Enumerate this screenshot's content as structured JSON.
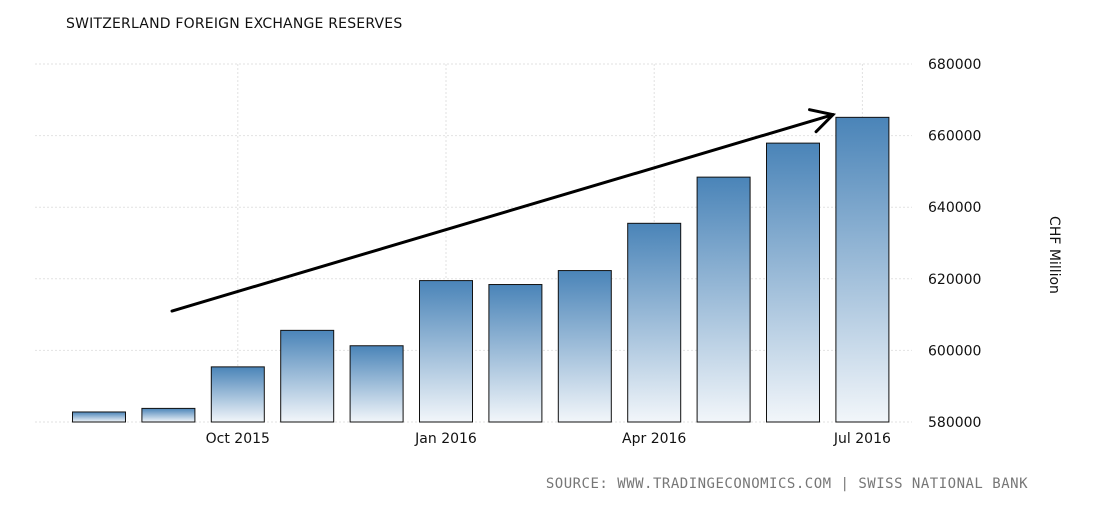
{
  "title": "SWITZERLAND FOREIGN EXCHANGE RESERVES",
  "source": "SOURCE: WWW.TRADINGECONOMICS.COM | SWISS NATIONAL BANK",
  "colors": {
    "bar_top": "#4a84b8",
    "bar_bottom": "#f2f6fa",
    "bar_stroke": "#111111",
    "grid": "#e2e2e2",
    "arrow": "#000000"
  },
  "chart_data": {
    "type": "bar",
    "categories": [
      "Aug 2015",
      "Sep 2015",
      "Oct 2015",
      "Nov 2015",
      "Dec 2015",
      "Jan 2016",
      "Feb 2016",
      "Mar 2016",
      "Apr 2016",
      "May 2016",
      "Jun 2016",
      "Jul 2016"
    ],
    "values": [
      582800,
      583800,
      595400,
      605600,
      601300,
      619500,
      618400,
      622300,
      635500,
      648400,
      657900,
      665100
    ],
    "x_tick_labels": [
      {
        "category": "Oct 2015",
        "label": "Oct 2015"
      },
      {
        "category": "Jan 2016",
        "label": "Jan 2016"
      },
      {
        "category": "Apr 2016",
        "label": "Apr 2016"
      },
      {
        "category": "Jul 2016",
        "label": "Jul 2016"
      }
    ],
    "y_ticks": [
      580000,
      600000,
      620000,
      640000,
      660000,
      680000
    ],
    "ylim": [
      580000,
      680000
    ],
    "ylabel": "CHF Million",
    "xlabel": "",
    "grid": true,
    "annotation": {
      "type": "arrow",
      "from": [
        "Aug 2015",
        611000
      ],
      "to": [
        "Jun 2016",
        665000
      ]
    }
  }
}
